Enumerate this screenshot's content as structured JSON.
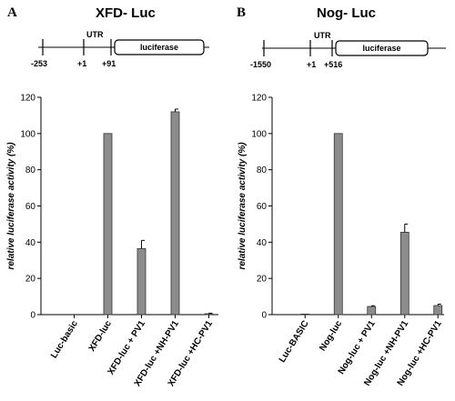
{
  "panels": [
    {
      "letter": "A",
      "title": "XFD- Luc",
      "construct": {
        "labels": {
          "start": "-253",
          "tss": "+1",
          "utr": "UTR",
          "end": "+91",
          "gene": "luciferase"
        }
      }
    },
    {
      "letter": "B",
      "title": "Nog- Luc",
      "construct": {
        "labels": {
          "start": "-1550",
          "tss": "+1",
          "utr": "UTR",
          "end": "+516",
          "gene": "luciferase"
        }
      }
    }
  ],
  "colors": {
    "bar": "#8c8c8c",
    "axis": "#000000"
  },
  "chart_data": [
    {
      "type": "bar",
      "title": "XFD- Luc",
      "xlabel": "",
      "ylabel": "relative luciferase activity (%)",
      "ylim": [
        0,
        120
      ],
      "yticks": [
        "0",
        "20",
        "40",
        "60",
        "80",
        "100",
        "120"
      ],
      "grid": false,
      "categories": [
        "Luc-basic",
        "XFD-luc",
        "XFD-luc + PV1",
        "XFD-luc +NH-PV1",
        "XFD-luc +HC-PV1"
      ],
      "values": [
        0,
        100,
        36.5,
        112,
        0.5
      ],
      "errors": [
        0,
        0,
        4.5,
        1.5,
        0.3
      ]
    },
    {
      "type": "bar",
      "title": "Nog- Luc",
      "xlabel": "",
      "ylabel": "relative luciferase activity (%)",
      "ylim": [
        0,
        120
      ],
      "yticks": [
        "0",
        "20",
        "40",
        "60",
        "80",
        "100",
        "120"
      ],
      "grid": false,
      "categories": [
        "Luc-BASIC",
        "Nog-luc",
        "Nog-luc + PV1",
        "Nog-luc +NH-PV1",
        "Nog-luc +HC-PV1"
      ],
      "values": [
        0.3,
        100,
        4.5,
        45.5,
        5
      ],
      "errors": [
        0,
        0,
        0.4,
        4.5,
        0.8
      ]
    }
  ]
}
